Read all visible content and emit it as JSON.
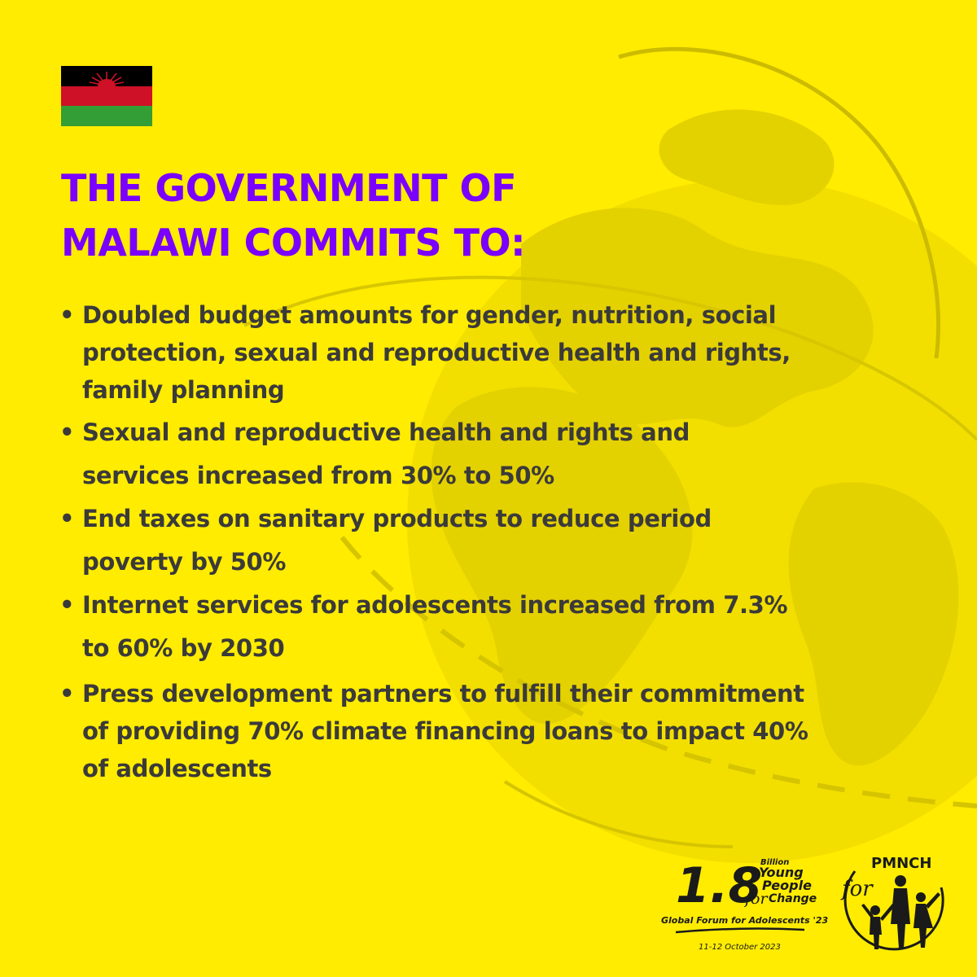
{
  "colors": {
    "background": "#ffec00",
    "title": "#7a00ff",
    "body_text": "#3b3a3a",
    "flag_black": "#000000",
    "flag_red": "#ce1126",
    "flag_green": "#339e35"
  },
  "flag": {
    "country": "Malawi"
  },
  "title": {
    "line1": "THE GOVERNMENT OF",
    "line2": "MALAWI COMMITS TO:"
  },
  "commitments": [
    "Doubled budget amounts for gender, nutrition, social protection, sexual and reproductive health and rights, family planning",
    "Sexual and reproductive health and rights and services increased from 30% to 50%",
    "End taxes on sanitary products to reduce period poverty by 50%",
    "Internet services for adolescents increased from 7.3% to 60% by 2030",
    "Press development partners to fulfill their commitment of providing 70% climate financing loans to impact 40% of adolescents"
  ],
  "event_logo": {
    "number": "1.8",
    "billion": "Billion",
    "young": "Young",
    "people": "People",
    "for": "for",
    "change": "Change",
    "forum": "Global Forum for Adolescents '23",
    "dates": "11-12 October 2023"
  },
  "org_logo": {
    "for": "for",
    "name": "PMNCH"
  }
}
